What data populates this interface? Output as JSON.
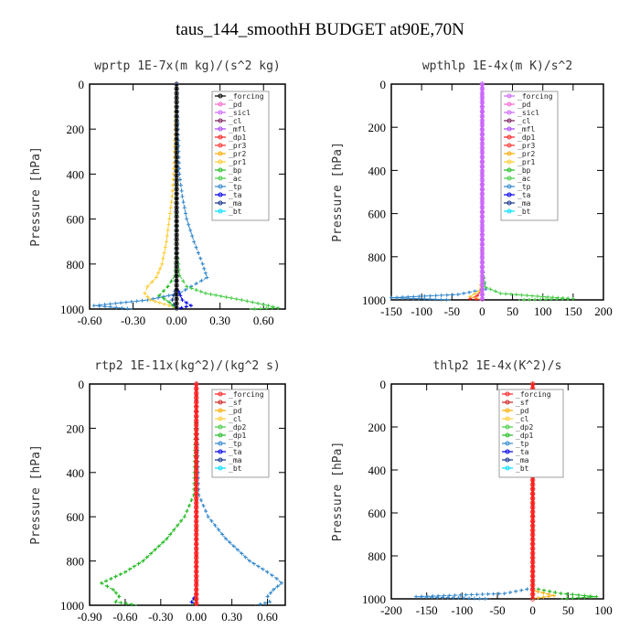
{
  "title": "taus_144_smoothH  BUDGET at90E,70N",
  "chart_data": [
    {
      "type": "line",
      "title": "wprtp   1E-7x(m kg)/(s^2 kg)",
      "ylabel": "Pressure [hPa]",
      "xlim": [
        -0.6,
        0.75
      ],
      "ylim": [
        0,
        1000
      ],
      "y_inverted": true,
      "xticks": [
        -0.6,
        -0.3,
        0.0,
        0.3,
        0.6
      ],
      "xtick_labels": [
        "-0.60",
        "-0.30",
        "0.00",
        "0.30",
        "0.60"
      ],
      "yticks": [
        0,
        200,
        400,
        600,
        800,
        1000
      ],
      "legend": [
        "_forcing",
        "_pd",
        "_sicl",
        "_cl",
        "_mfl",
        "_dp1",
        "_pr3",
        "_pr2",
        "_pr1",
        "_bp",
        "_ac",
        "_tp",
        "_ta",
        "_ma",
        "_bt"
      ],
      "legend_colors": [
        "#000000",
        "#ff66cc",
        "#cc66ff",
        "#7a1f5c",
        "#aa44ff",
        "#ff2020",
        "#ff3030",
        "#ffaa00",
        "#ffcc33",
        "#22bb22",
        "#44cc44",
        "#3388cc",
        "#0000ee",
        "#113388",
        "#00ddff"
      ],
      "series": [
        {
          "name": "_tp",
          "color": "#3388cc",
          "y": [
            0,
            200,
            400,
            500,
            600,
            700,
            800,
            860,
            900,
            930,
            960,
            985,
            1000
          ],
          "x": [
            0.0,
            0.01,
            0.02,
            0.04,
            0.07,
            0.12,
            0.18,
            0.21,
            0.1,
            0.02,
            -0.2,
            -0.57,
            -0.3
          ]
        },
        {
          "name": "_pr1",
          "color": "#ffcc33",
          "y": [
            0,
            200,
            400,
            500,
            600,
            700,
            800,
            860,
            900,
            930,
            960,
            985,
            1000
          ],
          "x": [
            0.0,
            -0.01,
            -0.02,
            -0.03,
            -0.05,
            -0.07,
            -0.1,
            -0.14,
            -0.2,
            -0.22,
            -0.18,
            -0.05,
            0.0
          ]
        },
        {
          "name": "_ac",
          "color": "#44cc44",
          "y": [
            0,
            700,
            850,
            900,
            930,
            960,
            980,
            995,
            1000
          ],
          "x": [
            0.0,
            0.0,
            0.02,
            0.07,
            0.2,
            0.45,
            0.6,
            0.7,
            0.5
          ]
        },
        {
          "name": "_bp",
          "color": "#22bb22",
          "y": [
            0,
            700,
            850,
            900,
            940,
            970,
            1000
          ],
          "x": [
            0.0,
            0.0,
            -0.01,
            -0.06,
            -0.12,
            -0.05,
            0.0
          ]
        },
        {
          "name": "_ta",
          "color": "#0000ee",
          "y": [
            0,
            900,
            960,
            985,
            1000
          ],
          "x": [
            0.0,
            0.0,
            0.04,
            0.1,
            0.0
          ]
        },
        {
          "name": "_ma",
          "color": "#113388",
          "y": [
            0,
            900,
            960,
            1000
          ],
          "x": [
            0.0,
            0.0,
            -0.03,
            0.0
          ]
        }
      ]
    },
    {
      "type": "line",
      "title": "wpthlp   1E-4x(m K)/s^2",
      "ylabel": "Pressure [hPa]",
      "xlim": [
        -150,
        200
      ],
      "ylim": [
        0,
        1000
      ],
      "y_inverted": true,
      "xticks": [
        -150,
        -100,
        -50,
        0,
        50,
        100,
        150,
        200
      ],
      "xtick_labels": [
        "-150",
        "-100",
        "-50",
        "0",
        "50",
        "100",
        "150",
        "200"
      ],
      "yticks": [
        0,
        200,
        400,
        600,
        800,
        1000
      ],
      "legend": [
        "_forcing",
        "_pd",
        "_sicl",
        "_cl",
        "_mfl",
        "_dp1",
        "_pr3",
        "_pr2",
        "_pr1",
        "_bp",
        "_ac",
        "_tp",
        "_ta",
        "_ma",
        "_bt"
      ],
      "legend_colors": [
        "#cc66ff",
        "#ff66cc",
        "#cc66ff",
        "#7a1f5c",
        "#aa44ff",
        "#ff2020",
        "#ff3030",
        "#ffaa00",
        "#ffcc33",
        "#22bb22",
        "#44cc44",
        "#3388cc",
        "#0000ee",
        "#113388",
        "#00ddff"
      ],
      "series": [
        {
          "name": "_tp",
          "color": "#3388cc",
          "y": [
            0,
            800,
            900,
            950,
            975,
            990,
            1000
          ],
          "x": [
            0,
            0,
            2,
            6,
            -40,
            -150,
            -50
          ]
        },
        {
          "name": "_ac",
          "color": "#44cc44",
          "y": [
            0,
            850,
            940,
            970,
            985,
            995,
            1000
          ],
          "x": [
            0,
            0,
            5,
            30,
            100,
            150,
            60
          ]
        },
        {
          "name": "_pr1",
          "color": "#ffcc33",
          "y": [
            0,
            900,
            960,
            985,
            1000
          ],
          "x": [
            0,
            0,
            -5,
            -20,
            0
          ]
        },
        {
          "name": "_dp1",
          "color": "#ff2020",
          "y": [
            0,
            950,
            980,
            995,
            1000
          ],
          "x": [
            0,
            0,
            -8,
            -20,
            0
          ]
        },
        {
          "name": "_forcing",
          "color": "#cc66ff",
          "y": [
            0,
            1000
          ],
          "x": [
            0,
            0
          ]
        }
      ]
    },
    {
      "type": "line",
      "title": "rtp2   1E-11x(kg^2)/(kg^2 s)",
      "ylabel": "Pressure [hPa]",
      "xlim": [
        -0.9,
        0.75
      ],
      "ylim": [
        0,
        1000
      ],
      "y_inverted": true,
      "xticks": [
        -0.9,
        -0.6,
        -0.3,
        0.0,
        0.3,
        0.6
      ],
      "xtick_labels": [
        "-0.90",
        "-0.60",
        "-0.30",
        "0.00",
        "0.30",
        "0.60"
      ],
      "yticks": [
        0,
        200,
        400,
        600,
        800,
        1000
      ],
      "legend": [
        "_forcing",
        "_sf",
        "_pd",
        "_cl",
        "_dp2",
        "_dp1",
        "_tp",
        "_ta",
        "_ma",
        "_bt"
      ],
      "legend_colors": [
        "#ff2020",
        "#cc2222",
        "#ffaa00",
        "#ffcc33",
        "#44cc44",
        "#22bb22",
        "#3388cc",
        "#0000ee",
        "#113388",
        "#00ddff"
      ],
      "series": [
        {
          "name": "_tp",
          "color": "#3388cc",
          "y": [
            0,
            500,
            600,
            700,
            800,
            850,
            880,
            900,
            930,
            960,
            985,
            1000
          ],
          "x": [
            0.0,
            0.02,
            0.1,
            0.25,
            0.45,
            0.6,
            0.68,
            0.72,
            0.65,
            0.6,
            0.62,
            0.5
          ]
        },
        {
          "name": "_dp1",
          "color": "#22bb22",
          "y": [
            0,
            500,
            600,
            700,
            800,
            850,
            880,
            900,
            930,
            960,
            985,
            1000
          ],
          "x": [
            0.0,
            -0.02,
            -0.1,
            -0.25,
            -0.45,
            -0.6,
            -0.72,
            -0.8,
            -0.7,
            -0.65,
            -0.68,
            -0.5
          ]
        },
        {
          "name": "_dp2",
          "color": "#44cc44",
          "y": [
            0,
            950,
            990,
            1000
          ],
          "x": [
            0.0,
            0.0,
            -0.03,
            0.0
          ]
        },
        {
          "name": "_ta",
          "color": "#0000ee",
          "y": [
            0,
            950,
            985,
            1000
          ],
          "x": [
            0.0,
            0.0,
            -0.04,
            0.0
          ]
        },
        {
          "name": "_forcing",
          "color": "#ff2020",
          "y": [
            0,
            1000
          ],
          "x": [
            0.0,
            0.0
          ]
        }
      ]
    },
    {
      "type": "line",
      "title": "thlp2   1E-4x(K^2)/s",
      "ylabel": "Pressure [hPa]",
      "xlim": [
        -200,
        100
      ],
      "ylim": [
        0,
        1000
      ],
      "y_inverted": true,
      "xticks": [
        -200,
        -150,
        -100,
        -50,
        0,
        50,
        100
      ],
      "xtick_labels": [
        "-200",
        "-150",
        "-100",
        "-50",
        "0",
        "50",
        "100"
      ],
      "yticks": [
        0,
        200,
        400,
        600,
        800,
        1000
      ],
      "legend": [
        "_forcing",
        "_sf",
        "_pd",
        "_cl",
        "_dp2",
        "_dp1",
        "_tp",
        "_ta",
        "_ma",
        "_bt"
      ],
      "legend_colors": [
        "#ff2020",
        "#cc2222",
        "#ffaa00",
        "#ffcc33",
        "#44cc44",
        "#22bb22",
        "#3388cc",
        "#0000ee",
        "#113388",
        "#00ddff"
      ],
      "series": [
        {
          "name": "_tp",
          "color": "#3388cc",
          "y": [
            0,
            950,
            975,
            990,
            1000
          ],
          "x": [
            0,
            0,
            -40,
            -165,
            -60
          ]
        },
        {
          "name": "_dp1",
          "color": "#22bb22",
          "y": [
            0,
            950,
            975,
            990,
            1000
          ],
          "x": [
            0,
            0,
            40,
            90,
            40
          ]
        },
        {
          "name": "_pd",
          "color": "#ffaa00",
          "y": [
            0,
            960,
            985,
            1000
          ],
          "x": [
            0,
            0,
            30,
            0
          ]
        },
        {
          "name": "_forcing",
          "color": "#ff2020",
          "y": [
            0,
            1000
          ],
          "x": [
            0,
            0
          ]
        }
      ]
    }
  ]
}
